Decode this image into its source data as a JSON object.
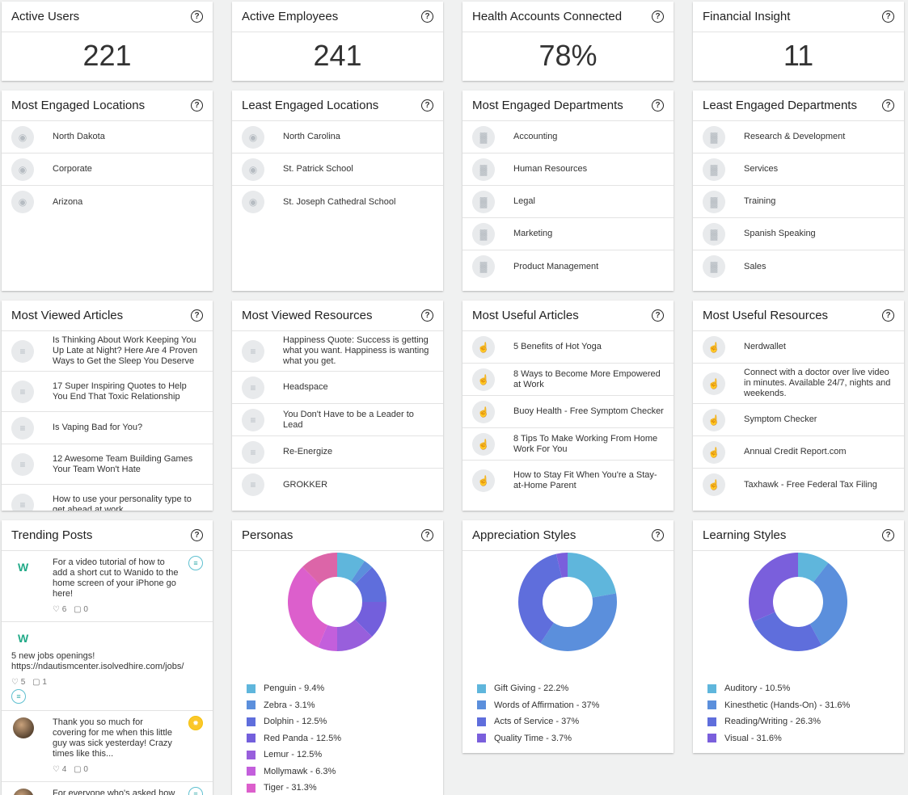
{
  "stats": [
    {
      "title": "Active Users",
      "value": "221"
    },
    {
      "title": "Active Employees",
      "value": "241"
    },
    {
      "title": "Health Accounts Connected",
      "value": "78%"
    },
    {
      "title": "Financial Insight",
      "value": "11"
    }
  ],
  "lists": [
    {
      "title": "Most Engaged Locations",
      "icon": "location-pin-icon",
      "items": [
        "North Dakota",
        "Corporate",
        "Arizona"
      ]
    },
    {
      "title": "Least Engaged Locations",
      "icon": "location-pin-icon",
      "items": [
        "North Carolina",
        "St. Patrick School",
        "St. Joseph Cathedral School"
      ]
    },
    {
      "title": "Most Engaged Departments",
      "icon": "bar-chart-icon",
      "items": [
        "Accounting",
        "Human Resources",
        "Legal",
        "Marketing",
        "Product Management"
      ]
    },
    {
      "title": "Least Engaged Departments",
      "icon": "bar-chart-icon",
      "items": [
        "Research & Development",
        "Services",
        "Training",
        "Spanish Speaking",
        "Sales"
      ]
    },
    {
      "title": "Most Viewed Articles",
      "icon": "article-icon",
      "items": [
        "Is Thinking About Work Keeping You Up Late at Night? Here Are 4 Proven Ways to Get the Sleep You Deserve",
        "17 Super Inspiring Quotes to Help You End That Toxic Relationship",
        "Is Vaping Bad for You?",
        "12 Awesome Team Building Games Your Team Won't Hate",
        "How to use your personality type to get ahead at work"
      ]
    },
    {
      "title": "Most Viewed Resources",
      "icon": "article-icon",
      "items": [
        "Happiness Quote: Success is getting what you want. Happiness is wanting what you get.",
        "Headspace",
        "You Don't Have to be a Leader to Lead",
        "Re-Energize",
        "GROKKER"
      ]
    },
    {
      "title": "Most Useful Articles",
      "icon": "thumbs-up-icon",
      "items": [
        "5 Benefits of Hot Yoga",
        "8 Ways to Become More Empowered at Work",
        "Buoy Health - Free Symptom Checker",
        "8 Tips To Make Working From Home Work For You",
        "How to Stay Fit When You're a Stay-at-Home Parent"
      ]
    },
    {
      "title": "Most Useful Resources",
      "icon": "thumbs-up-icon",
      "items": [
        "Nerdwallet",
        "Connect with a doctor over live video in minutes. Available 24/7, nights and weekends.",
        "Symptom Checker",
        "Annual Credit Report.com",
        "Taxhawk - Free Federal Tax Filing"
      ]
    }
  ],
  "trending": {
    "title": "Trending Posts",
    "posts": [
      {
        "text": "For a video tutorial of how to add a short cut to Wanido to the home screen of your iPhone go here!",
        "likes": "6",
        "comments": "0",
        "avatar": "wanido-logo"
      },
      {
        "text": "5 new jobs openings! https://ndautismcenter.isolvedhire.com/jobs/",
        "likes": "5",
        "comments": "1",
        "avatar": "wanido-logo"
      },
      {
        "text": "Thank you so much for covering for me when this little guy was sick yesterday! Crazy times like this...",
        "likes": "4",
        "comments": "0",
        "avatar": "user-photo"
      },
      {
        "text": "For everyone who's asked how my baking class is going... I'm",
        "likes": "",
        "comments": "",
        "avatar": "user-photo"
      }
    ]
  },
  "chart_data": [
    {
      "type": "pie",
      "title": "Personas",
      "series": [
        {
          "name": "Penguin",
          "value": 9.4,
          "label": "Penguin - 9.4%",
          "color": "#5fb6dc"
        },
        {
          "name": "Zebra",
          "value": 3.1,
          "label": "Zebra - 3.1%",
          "color": "#5b8fdc"
        },
        {
          "name": "Dolphin",
          "value": 12.5,
          "label": "Dolphin - 12.5%",
          "color": "#5f6edc"
        },
        {
          "name": "Red Panda",
          "value": 12.5,
          "label": "Red Panda - 12.5%",
          "color": "#735fdc"
        },
        {
          "name": "Lemur",
          "value": 12.5,
          "label": "Lemur - 12.5%",
          "color": "#985fdc"
        },
        {
          "name": "Mollymawk",
          "value": 6.3,
          "label": "Mollymawk - 6.3%",
          "color": "#c35fdc"
        },
        {
          "name": "Tiger",
          "value": 31.3,
          "label": "Tiger - 31.3%",
          "color": "#dc5fcc"
        },
        {
          "value": 12.4,
          "color": "#dc65a8"
        }
      ]
    },
    {
      "type": "pie",
      "title": "Appreciation Styles",
      "series": [
        {
          "name": "Gift Giving",
          "value": 22.2,
          "label": "Gift Giving - 22.2%",
          "color": "#5fb6dc"
        },
        {
          "name": "Words of Affirmation",
          "value": 37,
          "label": "Words of Affirmation - 37%",
          "color": "#5b8fdc"
        },
        {
          "name": "Acts of Service",
          "value": 37,
          "label": "Acts of Service - 37%",
          "color": "#5f6edc"
        },
        {
          "name": "Quality Time",
          "value": 3.7,
          "label": "Quality Time - 3.7%",
          "color": "#7a5fdc"
        }
      ]
    },
    {
      "type": "pie",
      "title": "Learning Styles",
      "series": [
        {
          "name": "Auditory",
          "value": 10.5,
          "label": "Auditory - 10.5%",
          "color": "#5fb6dc"
        },
        {
          "name": "Kinesthetic (Hands-On)",
          "value": 31.6,
          "label": "Kinesthetic (Hands-On) - 31.6%",
          "color": "#5b8fdc"
        },
        {
          "name": "Reading/Writing",
          "value": 26.3,
          "label": "Reading/Writing - 26.3%",
          "color": "#5f6edc"
        },
        {
          "name": "Visual",
          "value": 31.6,
          "label": "Visual - 31.6%",
          "color": "#7a5fdc"
        }
      ]
    }
  ]
}
